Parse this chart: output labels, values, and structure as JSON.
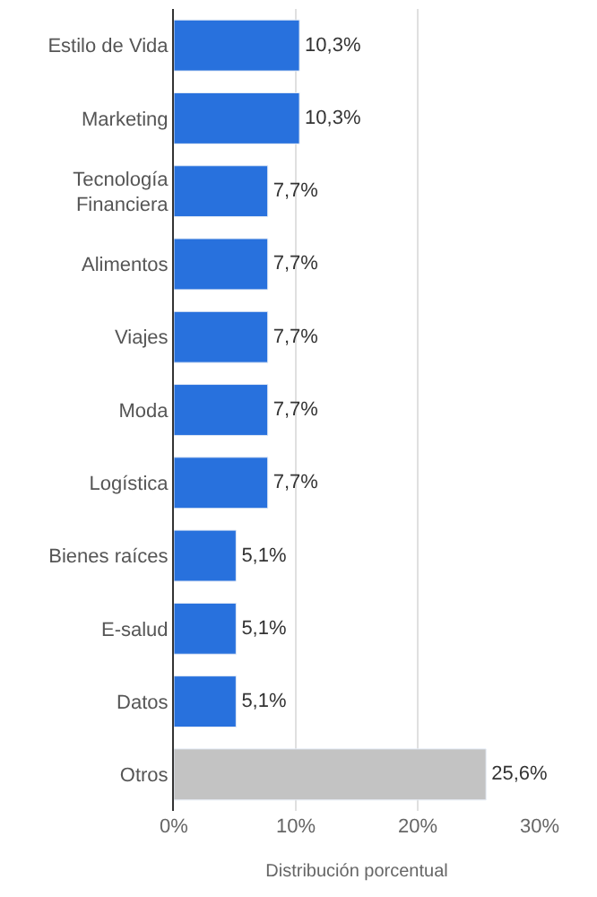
{
  "chart_data": {
    "type": "bar",
    "orientation": "horizontal",
    "xlabel": "Distribución porcentual",
    "categories": [
      "Estilo de Vida",
      "Marketing",
      "Tecnología Financiera",
      "Alimentos",
      "Viajes",
      "Moda",
      "Logística",
      "Bienes raíces",
      "E-salud",
      "Datos",
      "Otros"
    ],
    "values": [
      10.3,
      10.3,
      7.7,
      7.7,
      7.7,
      7.7,
      7.7,
      5.1,
      5.1,
      5.1,
      25.6
    ],
    "colors": [
      "#2871dd",
      "#2871dd",
      "#2871dd",
      "#2871dd",
      "#2871dd",
      "#2871dd",
      "#2871dd",
      "#2871dd",
      "#2871dd",
      "#2871dd",
      "#c3c3c3"
    ],
    "value_labels": [
      "10,3%",
      "10,3%",
      "7,7%",
      "7,7%",
      "7,7%",
      "7,7%",
      "7,7%",
      "5,1%",
      "5,1%",
      "5,1%",
      "25,6%"
    ],
    "xlim": [
      0,
      30
    ],
    "xticks": [
      {
        "value": 0,
        "label": "0%"
      },
      {
        "value": 10,
        "label": "10%"
      },
      {
        "value": 20,
        "label": "20%"
      },
      {
        "value": 30,
        "label": "30%"
      }
    ],
    "grid": "x",
    "legend": false
  }
}
